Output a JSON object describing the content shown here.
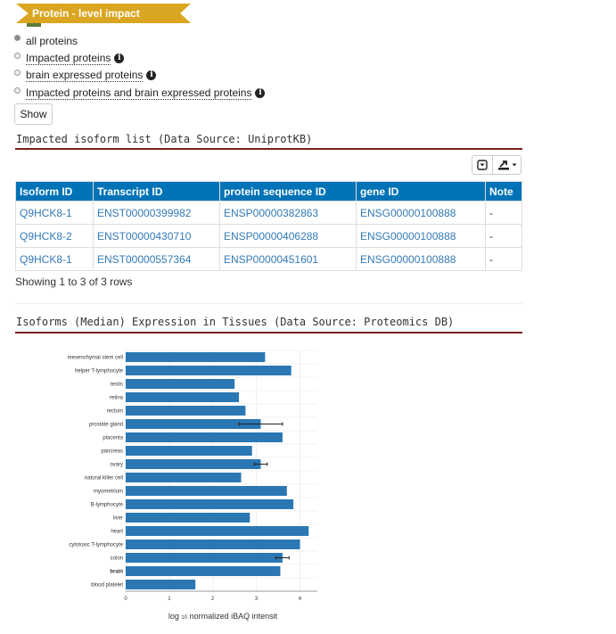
{
  "banner": {
    "title": "Protein - level impact"
  },
  "filters": [
    {
      "label": "all proteins",
      "checked": true,
      "info": false
    },
    {
      "label": "Impacted proteins",
      "checked": false,
      "info": true
    },
    {
      "label": "brain expressed proteins",
      "checked": false,
      "info": true
    },
    {
      "label": "Impacted proteins and brain expressed proteins",
      "checked": false,
      "info": true
    }
  ],
  "show_button": "Show",
  "isoform_section": {
    "title": "Impacted isoform list (Data Source: UniprotKB)",
    "columns": [
      "Isoform ID",
      "Transcript ID",
      "protein sequence ID",
      "gene ID",
      "Note"
    ],
    "rows": [
      [
        "Q9HCK8-1",
        "ENST00000399982",
        "ENSP00000382863",
        "ENSG00000100888",
        "-"
      ],
      [
        "Q9HCK8-2",
        "ENST00000430710",
        "ENSP00000406288",
        "ENSG00000100888",
        "-"
      ],
      [
        "Q9HCK8-1",
        "ENST00000557364",
        "ENSP00000451601",
        "ENSG00000100888",
        "-"
      ]
    ],
    "pagination": "Showing 1 to 3 of 3 rows"
  },
  "expression_section": {
    "title": "Isoforms (Median) Expression in Tissues (Data Source: Proteomics DB)"
  },
  "icons": {
    "export": "export-icon",
    "toggle": "toggle-icon",
    "info": "info-icon"
  },
  "colors": {
    "header": "#0073b7",
    "bar": "#2a77b4",
    "rule": "#7a1e1e",
    "banner": "#daa520",
    "link": "#337ab7"
  },
  "chart_data": {
    "type": "bar",
    "orientation": "horizontal",
    "categories": [
      "mesenchymal stem cell",
      "helper T-lymphocyte",
      "testis",
      "retina",
      "rectum",
      "prostate gland",
      "placenta",
      "pancreas",
      "ovary",
      "natural killer cell",
      "myometrium",
      "B-lymphocyte",
      "liver",
      "heart",
      "cytotoxic T-lymphocyte",
      "colon",
      "brain",
      "blood platelet"
    ],
    "values": [
      3.2,
      3.8,
      2.5,
      2.6,
      2.75,
      3.1,
      3.6,
      2.9,
      3.1,
      2.65,
      3.7,
      3.85,
      2.85,
      4.2,
      4.0,
      3.6,
      3.55,
      1.6
    ],
    "error_high": [
      null,
      null,
      null,
      null,
      null,
      3.6,
      null,
      null,
      3.25,
      null,
      null,
      null,
      null,
      null,
      null,
      3.75,
      null,
      null
    ],
    "error_low": [
      null,
      null,
      null,
      null,
      null,
      2.6,
      null,
      null,
      2.95,
      null,
      null,
      null,
      null,
      null,
      null,
      3.45,
      null,
      null
    ],
    "bold_category": "brain",
    "xticks": [
      "0",
      "1",
      "2",
      "3",
      "4"
    ],
    "xlim": [
      0,
      4.4
    ],
    "xlabel_main": "log",
    "xlabel_sub": "10",
    "xlabel_rest": "normalized iBAQ intensit"
  }
}
